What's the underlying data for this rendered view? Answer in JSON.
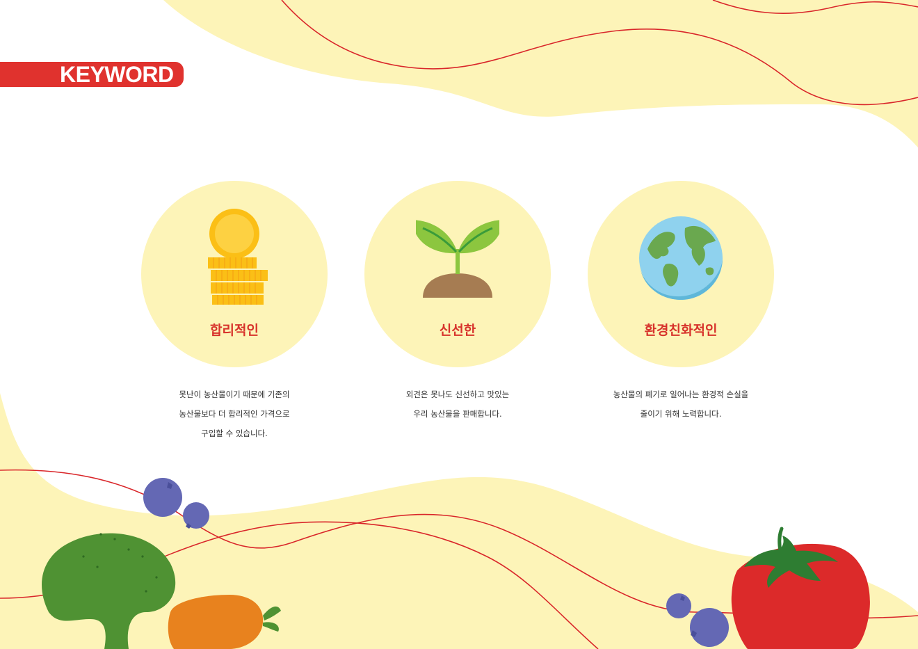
{
  "header": {
    "keyword_label": "KEYWORD"
  },
  "colors": {
    "accent_red": "#e0322e",
    "title_red": "#d7322b",
    "circle_yellow": "#fdf4b8",
    "wave_yellow": "#fdf4b8",
    "wave_line": "#d9262a"
  },
  "keywords": [
    {
      "title": "합리적인",
      "icon": "coin-stack-icon",
      "description": [
        "못난이 농산물이기 때문에 기존의",
        "농산물보다 더 합리적인 가격으로",
        "구입할 수 있습니다."
      ]
    },
    {
      "title": "신선한",
      "icon": "sprout-icon",
      "description": [
        "외견은 못나도 신선하고 맛있는",
        "우리 농산물을 판매합니다."
      ]
    },
    {
      "title": "환경친화적인",
      "icon": "globe-icon",
      "description": [
        "농산물의 폐기로 일어나는 환경적 손실을",
        "줄이기 위해 노력합니다."
      ]
    }
  ],
  "decorations": [
    "blueberry-icon",
    "cucumber-icon",
    "carrot-icon",
    "tomato-icon"
  ]
}
